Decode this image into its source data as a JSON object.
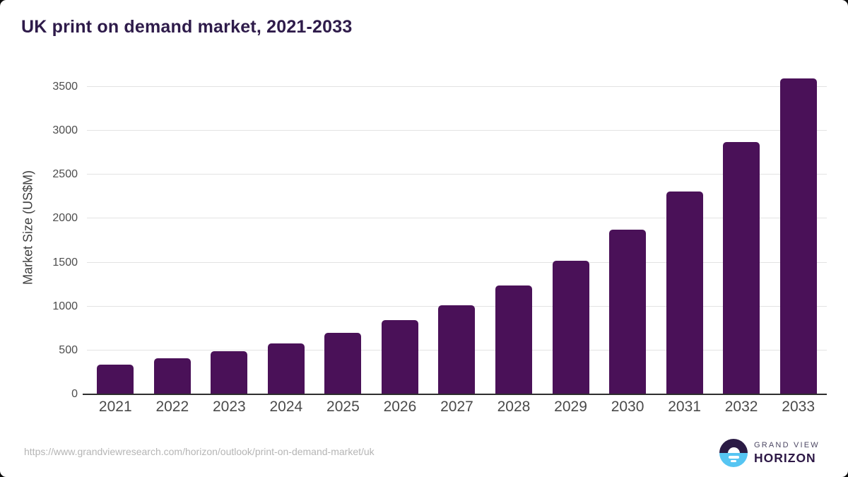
{
  "title": "UK print on demand market, 2021-2033",
  "chart_data": {
    "type": "bar",
    "title": "UK print on demand market, 2021-2033",
    "categories": [
      "2021",
      "2022",
      "2023",
      "2024",
      "2025",
      "2026",
      "2027",
      "2028",
      "2029",
      "2030",
      "2031",
      "2032",
      "2033"
    ],
    "values": [
      340,
      410,
      490,
      578,
      698,
      843,
      1012,
      1240,
      1517,
      1872,
      2312,
      2869,
      3600
    ],
    "xlabel": "",
    "ylabel": "Market Size (US$M)",
    "ylim": [
      0,
      3600
    ],
    "yticks": [
      0,
      500,
      1000,
      1500,
      2000,
      2500,
      3000,
      3500
    ],
    "grid": "horizontal",
    "legend_position": "none",
    "bar_color": "#4a1158"
  },
  "colors": {
    "bar": "#4a1158",
    "title_text": "#2e1b4a",
    "axis_text": "#4d4d4d",
    "gridline": "#e3e3e3",
    "baseline": "#2e2e2e",
    "url_text": "#b5b5b5",
    "logo_dark": "#2b1b45",
    "logo_blue": "#56c5f2"
  },
  "footer": {
    "source_url": "https://www.grandviewresearch.com/horizon/outlook/print-on-demand-market/uk",
    "logo": {
      "line1": "GRAND VIEW",
      "line2": "HORIZON",
      "mark_icon": "horizon-sunrise-icon"
    }
  }
}
